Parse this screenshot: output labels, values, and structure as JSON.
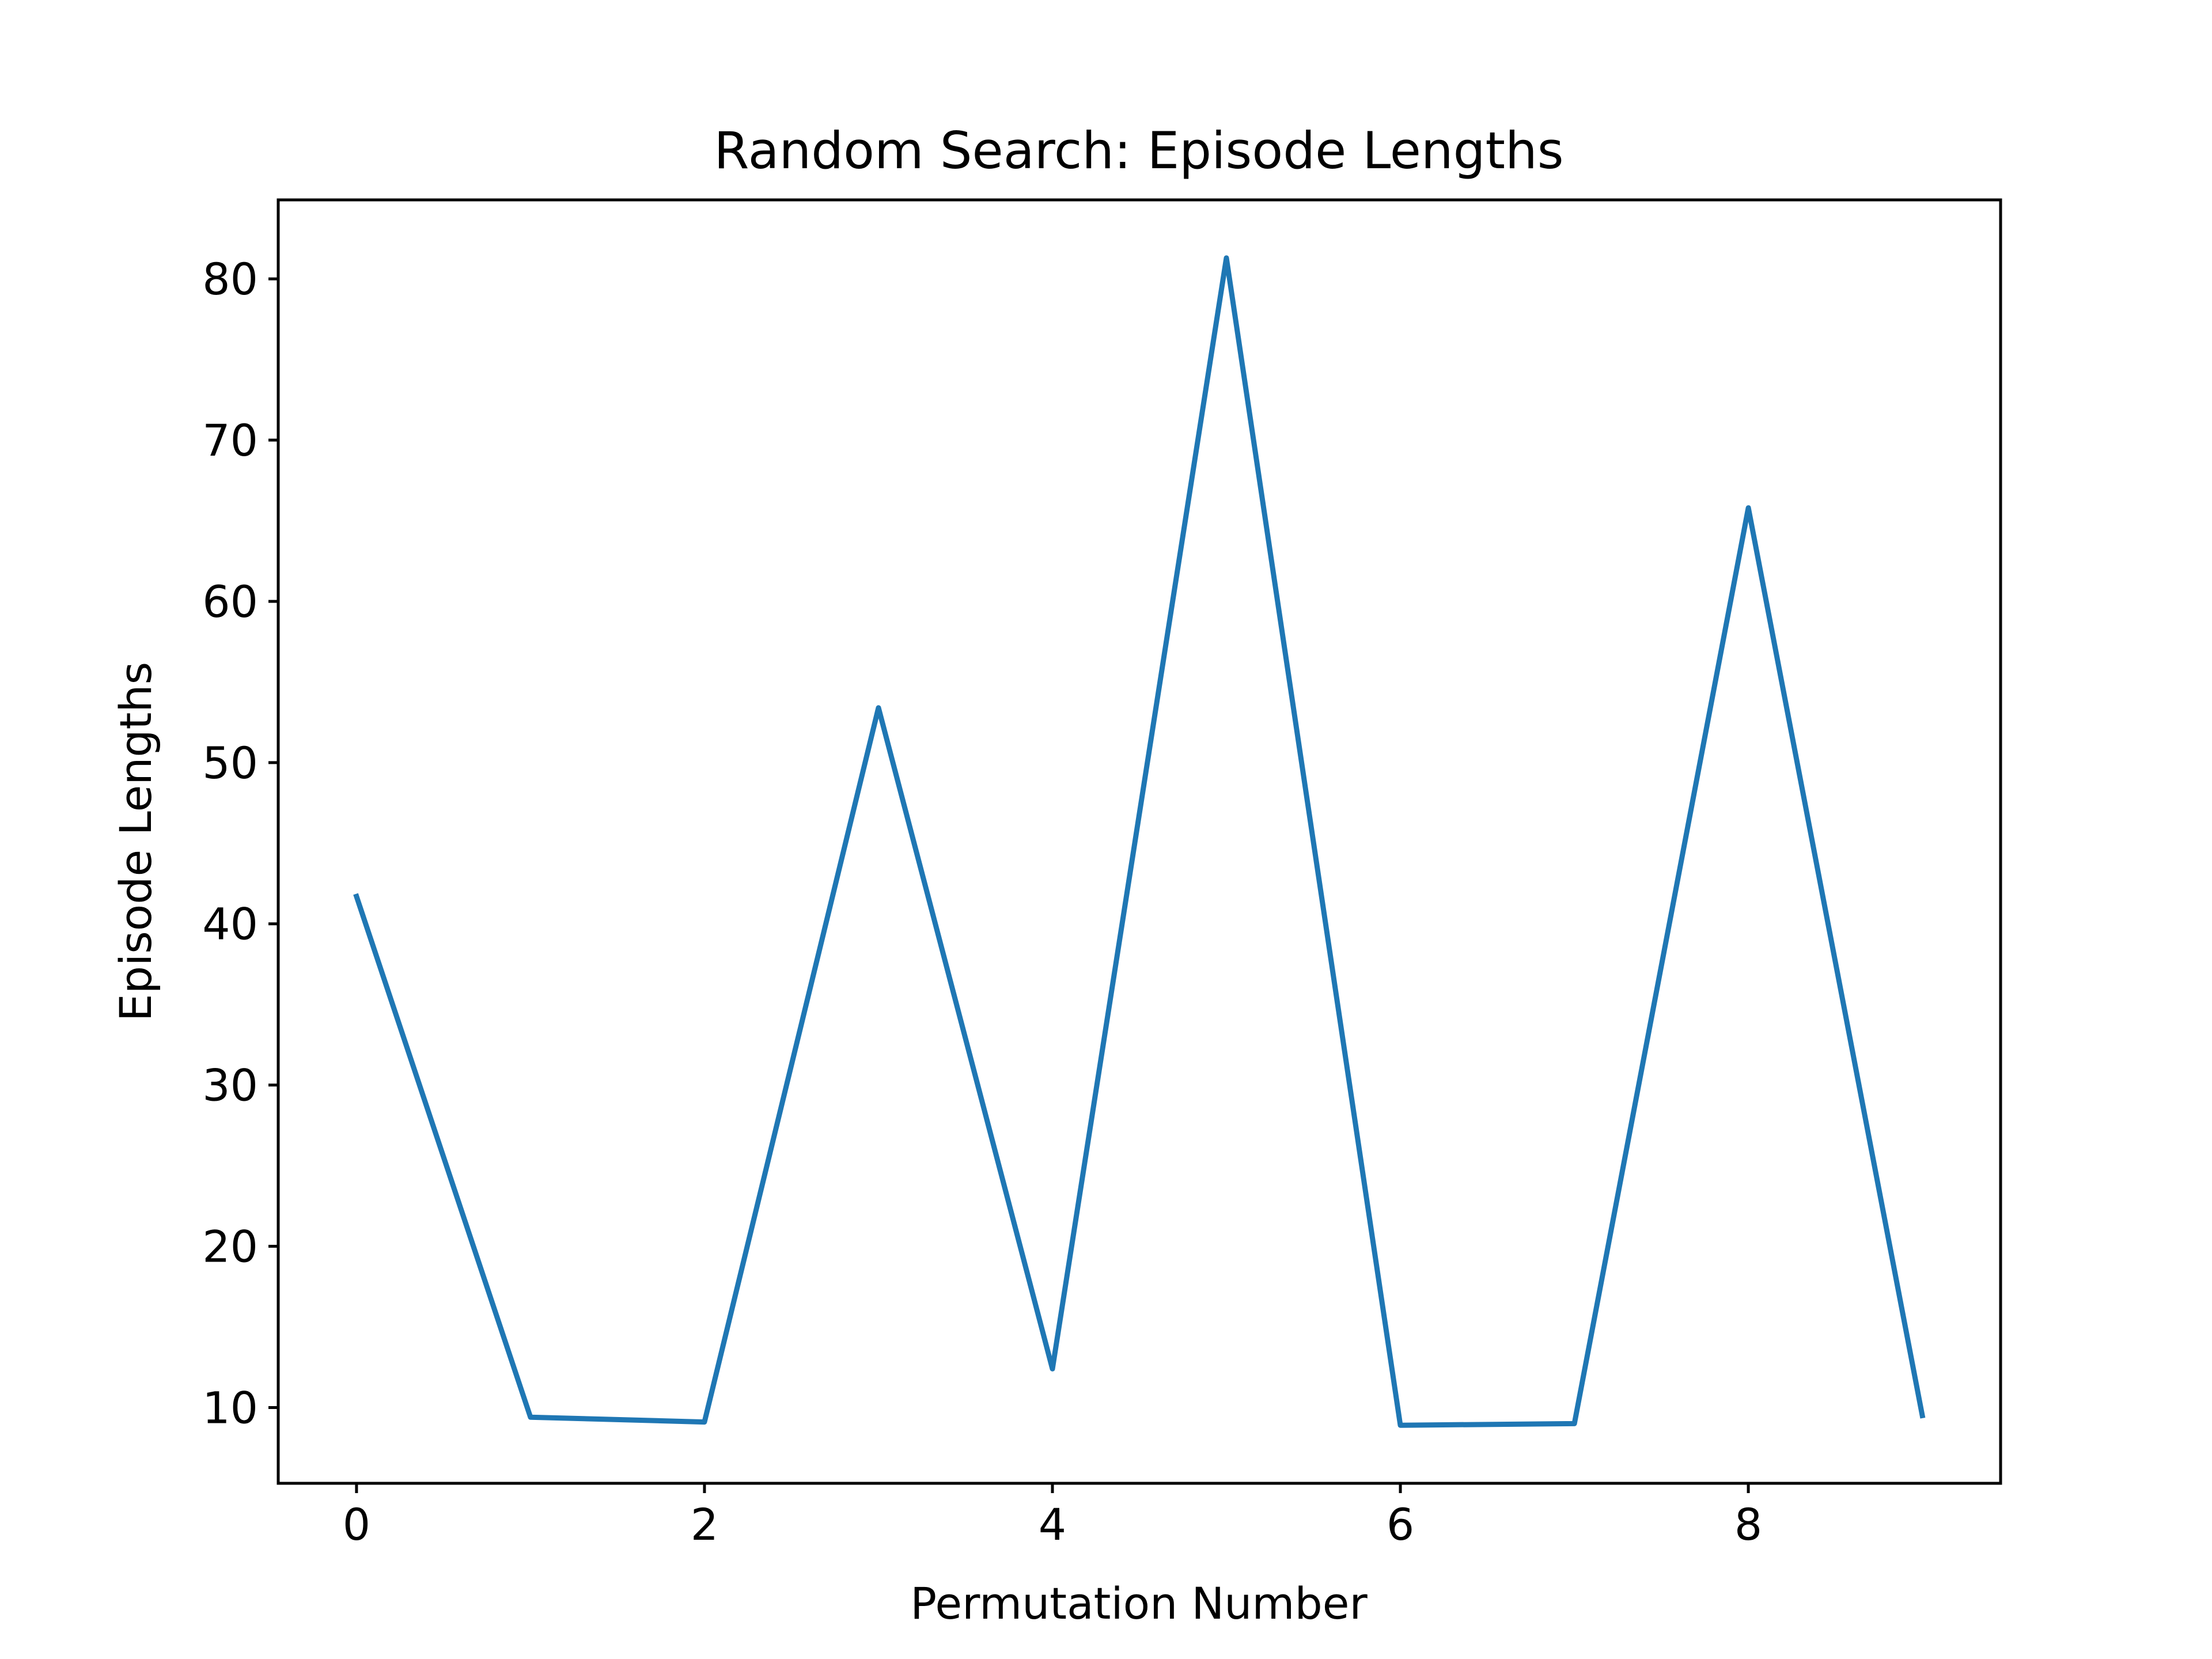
{
  "chart_data": {
    "type": "line",
    "title": "Random Search: Episode Lengths",
    "xlabel": "Permutation Number",
    "ylabel": "Episode Lengths",
    "x": [
      0,
      1,
      2,
      3,
      4,
      5,
      6,
      7,
      8,
      9
    ],
    "series": [
      {
        "values": [
          41.7,
          9.4,
          9.1,
          53.4,
          12.4,
          81.3,
          8.9,
          9.0,
          65.8,
          9.5
        ],
        "color": "#1f77b4"
      }
    ],
    "xlim": [
      -0.45,
      9.45
    ],
    "ylim": [
      5.3,
      84.9
    ],
    "xticks": [
      0,
      2,
      4,
      6,
      8
    ],
    "xtick_labels": [
      "0",
      "2",
      "4",
      "6",
      "8"
    ],
    "yticks": [
      10,
      20,
      30,
      40,
      50,
      60,
      70,
      80
    ],
    "ytick_labels": [
      "10",
      "20",
      "30",
      "40",
      "50",
      "60",
      "70",
      "80"
    ],
    "grid": false,
    "legend": "none"
  }
}
